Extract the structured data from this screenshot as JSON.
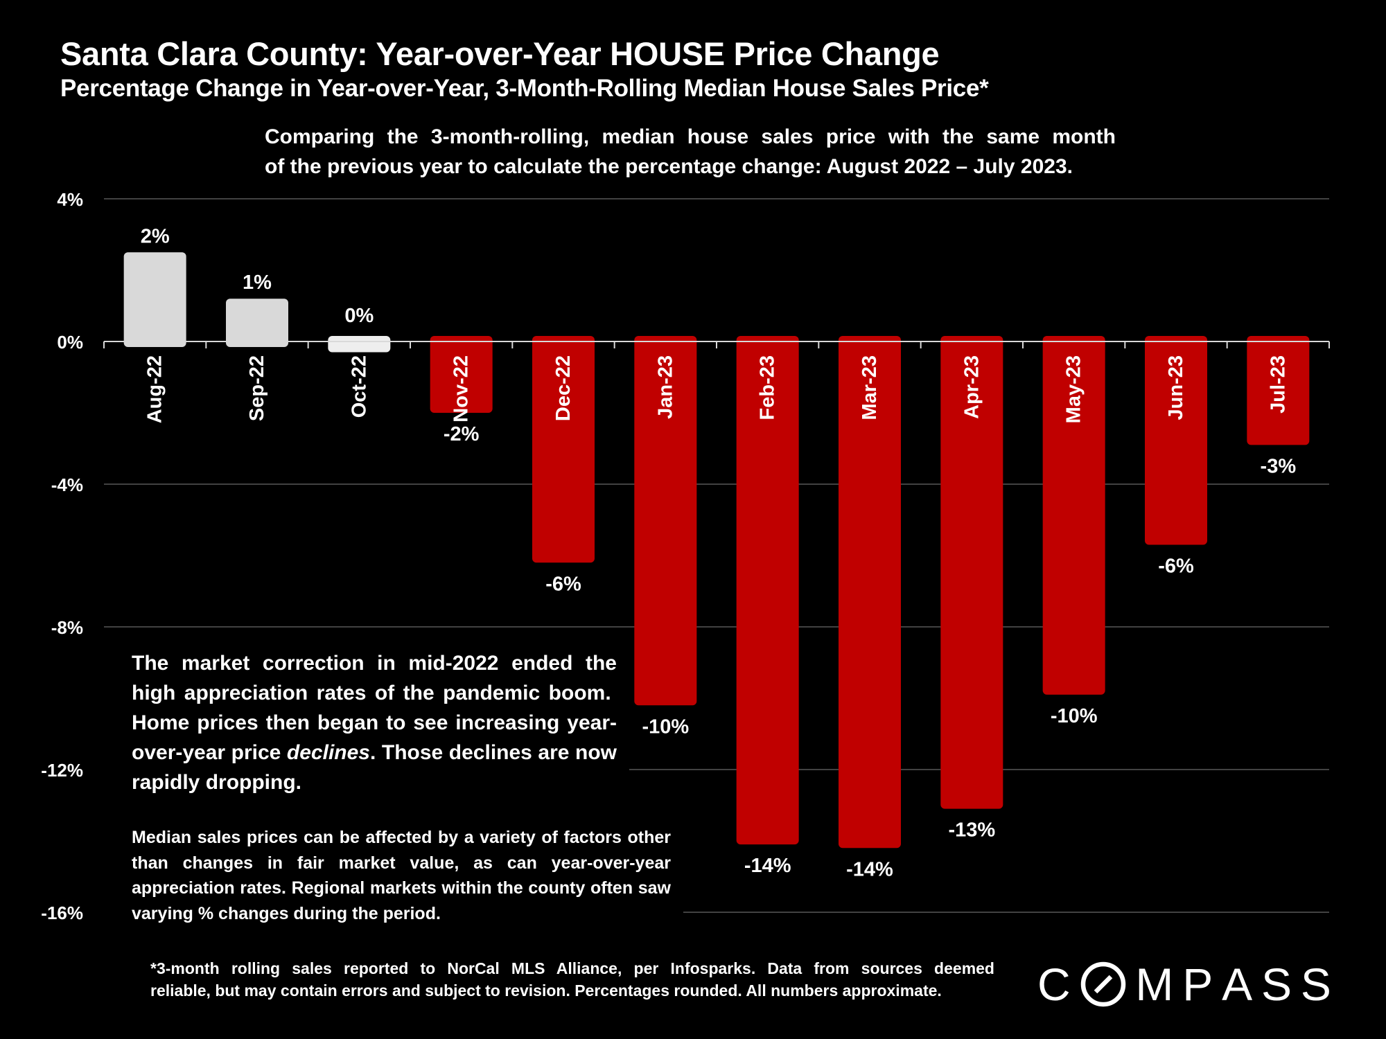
{
  "header": {
    "title": "Santa Clara County: Year-over-Year HOUSE Price Change",
    "subtitle": "Percentage Change in Year-over-Year, 3-Month-Rolling Median House Sales Price*",
    "description_lines": [
      "Comparing the 3-month-rolling, median house sales price with the same month",
      "of the previous year to calculate the percentage change: August 2022 – July 2023."
    ]
  },
  "notes": {
    "main_part1": "The market correction in mid-2022 ended the high appreciation rates of the pandemic boom.  Home prices then began to see increasing year-over-year price ",
    "main_emph": "declines",
    "main_part2": ". Those declines are now rapidly dropping.",
    "secondary": "Median sales prices can be affected by a variety of factors other than changes in fair market value, as can year-over-year appreciation rates. Regional markets within the county often saw varying % changes during the period."
  },
  "footnote_lines": [
    "*3-month rolling sales reported to NorCal MLS Alliance, per Infosparks. Data from sources deemed",
    "reliable, but may contain errors and subject to revision. Percentages rounded. All numbers approximate."
  ],
  "logo": {
    "letters": [
      "C",
      "O",
      "M",
      "P",
      "A",
      "S",
      "S"
    ]
  },
  "colors": {
    "background": "#000000",
    "positive_bar": "#d9d9d9",
    "negative_bar": "#c00000",
    "gridline": "#595959",
    "text": "#ffffff"
  },
  "chart_data": {
    "type": "bar",
    "categories": [
      "Aug-22",
      "Sep-22",
      "Oct-22",
      "Nov-22",
      "Dec-22",
      "Jan-23",
      "Feb-23",
      "Mar-23",
      "Apr-23",
      "May-23",
      "Jun-23",
      "Jul-23"
    ],
    "values": [
      2.5,
      1.2,
      -0.3,
      -2.0,
      -6.2,
      -10.2,
      -14.1,
      -14.2,
      -13.1,
      -9.9,
      -5.7,
      -2.9
    ],
    "data_labels": [
      "2%",
      "1%",
      "0%",
      "-2%",
      "-6%",
      "-10%",
      "-14%",
      "-14%",
      "-13%",
      "-10%",
      "-6%",
      "-3%"
    ],
    "ylim": [
      -16,
      4
    ],
    "yticks": [
      4,
      0,
      -4,
      -8,
      -12,
      -16
    ],
    "ytick_labels": [
      "4%",
      "0%",
      "-4%",
      "-8%",
      "-12%",
      "-16%"
    ],
    "grid": true,
    "legend": "none",
    "xlabel": "",
    "ylabel": ""
  }
}
